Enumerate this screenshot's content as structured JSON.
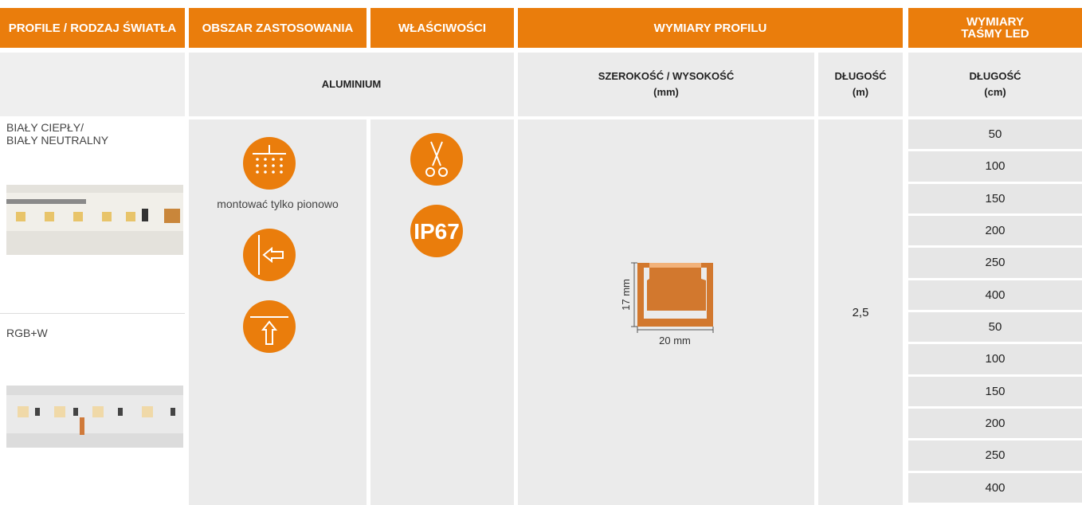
{
  "header": {
    "columns": [
      "PROFILE / RODZAJ ŚWIATŁA",
      "OBSZAR ZASTOSOWANIA",
      "WŁAŚCIWOŚCI",
      "WYMIARY PROFILU",
      "WYMIARY\nTAŚMY LED"
    ]
  },
  "subheader": {
    "material": "ALUMINIUM",
    "profile_size": {
      "label": "SZEROKOŚĆ / WYSOKOŚĆ",
      "unit": "(mm)"
    },
    "profile_length": {
      "label": "DŁUGOŚĆ",
      "unit": "(m)"
    },
    "tape_length": {
      "label": "DŁUGOŚĆ",
      "unit": "(cm)"
    }
  },
  "lights": [
    "BIAŁY CIEPŁY/\nBIAŁY NEUTRALNY",
    "RGB+W"
  ],
  "application_note": "montować tylko pionowo",
  "property_badge": "IP67",
  "profile_drawing": {
    "height": "17 mm",
    "width": "20 mm"
  },
  "profile_length": "2,5",
  "tape_lengths": [
    50,
    100,
    150,
    200,
    250,
    400,
    50,
    100,
    150,
    200,
    250,
    400
  ]
}
